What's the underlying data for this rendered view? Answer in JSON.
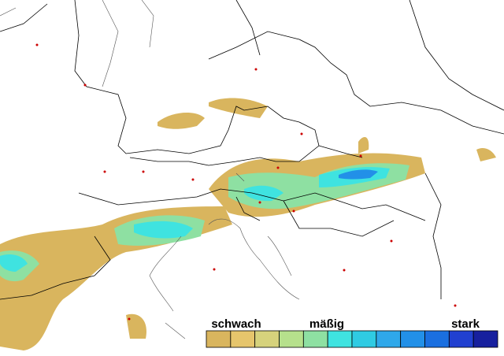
{
  "legend": {
    "labels": [
      "schwach",
      "mäßig",
      "stark"
    ],
    "colors": [
      "#d9b55e",
      "#e6c56c",
      "#d6d27c",
      "#b6e08c",
      "#8ee0a2",
      "#3fe3e0",
      "#2fcbe3",
      "#2fa8ea",
      "#2290e8",
      "#1a6fe0",
      "#2140d0",
      "#17209e"
    ]
  }
}
